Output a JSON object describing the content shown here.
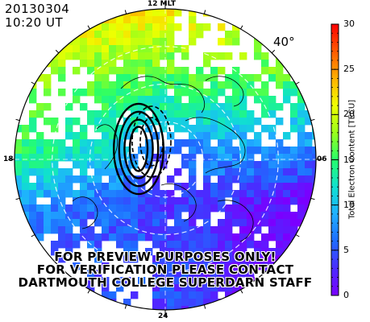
{
  "header": {
    "date": "20130304",
    "time": "10:20 UT",
    "lowest_latitude": "40°"
  },
  "mlt_labels": {
    "top": "12 MLT",
    "bottom": "24",
    "left": "18",
    "right": "06"
  },
  "disclaimer": {
    "line1": "FOR PREVIEW PURPOSES ONLY!",
    "line2": "FOR VERIFICATION PLEASE CONTACT",
    "line3": "DARTMOUTH COLLEGE SUPERDARN STAFF"
  },
  "colorbar": {
    "title": "Total Electron Content [TECU]",
    "min": 0,
    "max": 30,
    "ticks": [
      "0",
      "5",
      "10",
      "15",
      "20",
      "25",
      "30"
    ],
    "tick_values": [
      0,
      5,
      10,
      15,
      20,
      25,
      30
    ],
    "colors": [
      "#7a00ff",
      "#4a2cff",
      "#1f6bff",
      "#1fb0ff",
      "#10e0d0",
      "#26ff6a",
      "#9aff1a",
      "#f0ff00",
      "#ffb000",
      "#ff5a00",
      "#ff0000"
    ]
  },
  "map": {
    "projection": "polar",
    "coordinate_system": "MLT / magnetic latitude",
    "min_latitude": 40
  }
}
